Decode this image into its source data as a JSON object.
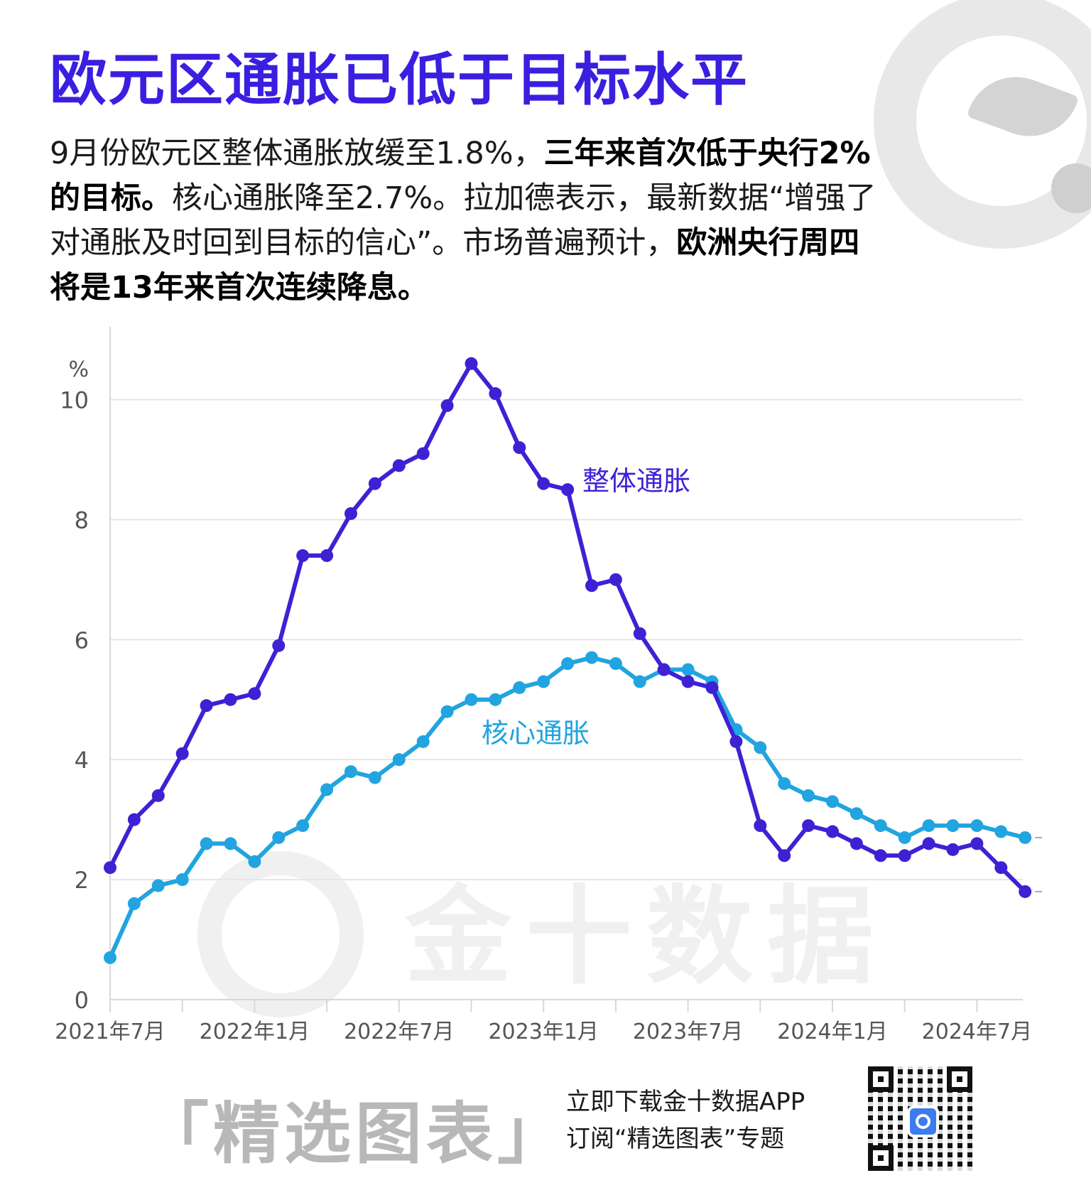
{
  "header": {
    "title": "欧元区通胀已低于目标水平",
    "desc_p1": "9月份欧元区整体通胀放缓至1.8%，",
    "desc_b1": "三年来首次低于央行2%的目标。",
    "desc_p2": "核心通胀降至2.7%。拉加德表示，最新数据“增强了对通胀及时回到目标的信心”。市场普遍预计，",
    "desc_b2": "欧洲央行周四将是13年来首次连续降息。"
  },
  "colors": {
    "headline": "#3a1fe0",
    "headline_series": "#3d22d4",
    "core_series": "#21a4e0",
    "grid": "#e6e6e6",
    "axis_text": "#555555",
    "watermark": "#f0f0f0"
  },
  "watermark": "金十数据",
  "chart_data": {
    "type": "line",
    "ylabel": "%",
    "ylim": [
      0,
      11
    ],
    "yticks": [
      0,
      2,
      4,
      6,
      8,
      10
    ],
    "grid": true,
    "x_start": "2021-07",
    "x_tick_labels": [
      "2021年7月",
      "2022年1月",
      "2022年7月",
      "2023年1月",
      "2023年7月",
      "2024年1月",
      "2024年7月"
    ],
    "x": [
      "2021-07",
      "2021-08",
      "2021-09",
      "2021-10",
      "2021-11",
      "2021-12",
      "2022-01",
      "2022-02",
      "2022-03",
      "2022-04",
      "2022-05",
      "2022-06",
      "2022-07",
      "2022-08",
      "2022-09",
      "2022-10",
      "2022-11",
      "2022-12",
      "2023-01",
      "2023-02",
      "2023-03",
      "2023-04",
      "2023-05",
      "2023-06",
      "2023-07",
      "2023-08",
      "2023-09",
      "2023-10",
      "2023-11",
      "2023-12",
      "2024-01",
      "2024-02",
      "2024-03",
      "2024-04",
      "2024-05",
      "2024-06",
      "2024-07",
      "2024-08",
      "2024-09"
    ],
    "series": [
      {
        "name": "整体通胀",
        "values": [
          2.2,
          3.0,
          3.4,
          4.1,
          4.9,
          5.0,
          5.1,
          5.9,
          7.4,
          7.4,
          8.1,
          8.6,
          8.9,
          9.1,
          9.9,
          10.6,
          10.1,
          9.2,
          8.6,
          8.5,
          6.9,
          7.0,
          6.1,
          5.5,
          5.3,
          5.2,
          4.3,
          2.9,
          2.4,
          2.9,
          2.8,
          2.6,
          2.4,
          2.4,
          2.6,
          2.5,
          2.6,
          2.2,
          1.8
        ]
      },
      {
        "name": "核心通胀",
        "values": [
          0.7,
          1.6,
          1.9,
          2.0,
          2.6,
          2.6,
          2.3,
          2.7,
          2.9,
          3.5,
          3.8,
          3.7,
          4.0,
          4.3,
          4.8,
          5.0,
          5.0,
          5.2,
          5.3,
          5.6,
          5.7,
          5.6,
          5.3,
          5.5,
          5.5,
          5.3,
          4.5,
          4.2,
          3.6,
          3.4,
          3.3,
          3.1,
          2.9,
          2.7,
          2.9,
          2.9,
          2.9,
          2.8,
          2.7
        ]
      }
    ]
  },
  "footer": {
    "tag": "「精选图表」",
    "line1": "立即下载金十数据APP",
    "line2": "订阅“精选图表”专题"
  }
}
